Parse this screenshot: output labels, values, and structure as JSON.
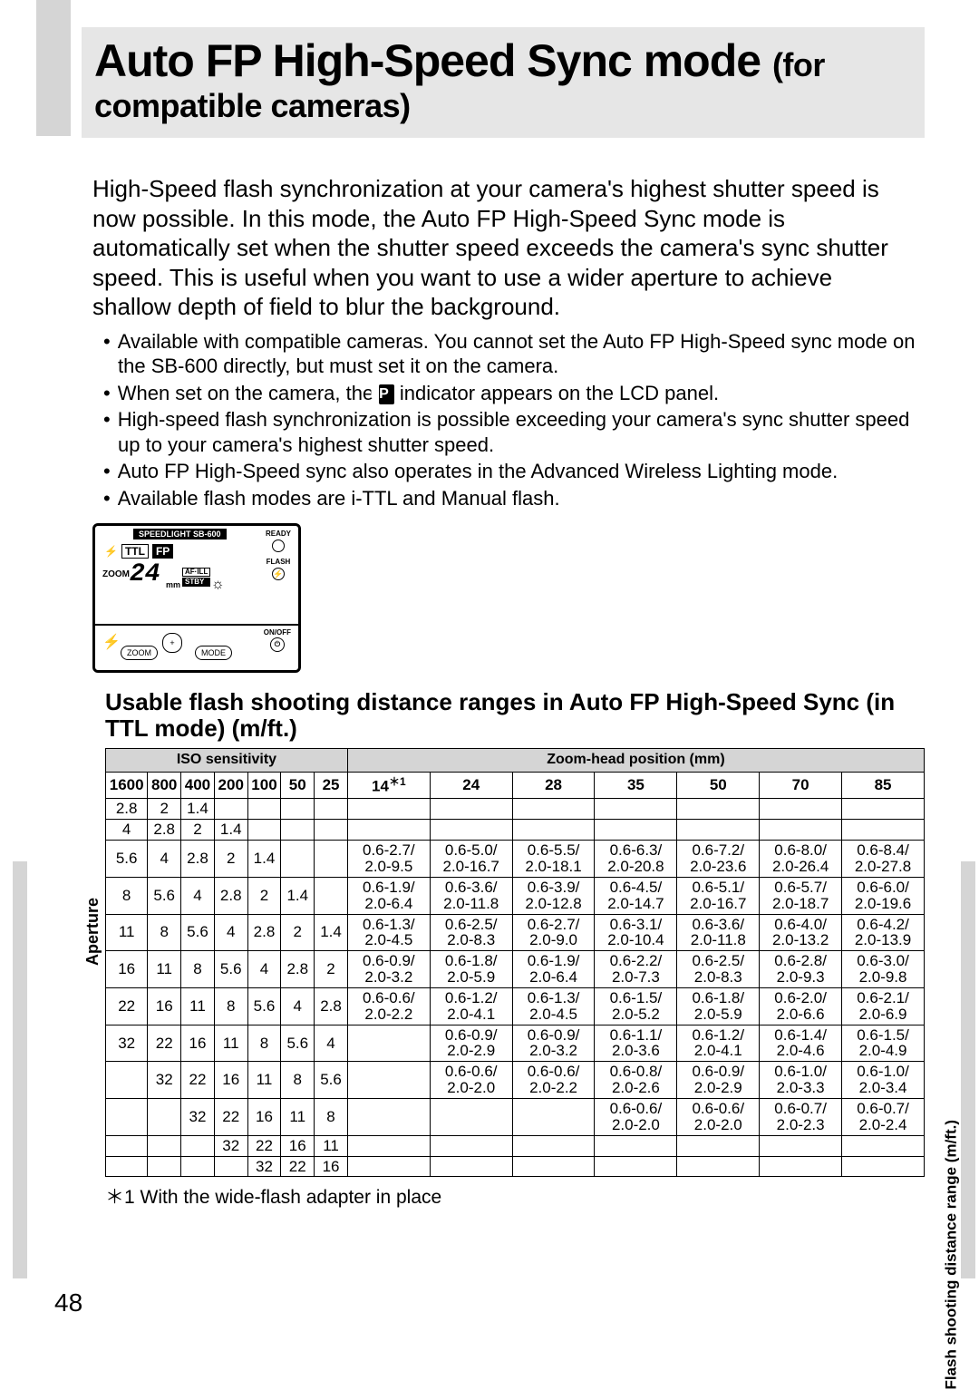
{
  "title": {
    "main": "Auto FP High-Speed Sync mode ",
    "sub": "(for compatible cameras)"
  },
  "intro": "High-Speed flash synchronization at your camera's highest shutter speed is now possible. In this mode, the Auto FP High-Speed Sync mode is automatically set when the shutter speed exceeds the camera's sync shutter speed. This is useful when you want to use a wider aperture to achieve shallow depth of field to blur the background.",
  "bullets": [
    "Available with compatible cameras. You cannot set the Auto FP High-Speed sync mode on the SB-600 directly, but must set it on the camera.",
    "When set on the camera, the [FP] indicator appears on the LCD panel.",
    "High-speed flash synchronization is possible exceeding your camera's sync shutter speed up to your camera's highest shutter speed.",
    "Auto FP High-Speed sync also operates in the Advanced Wireless Lighting mode.",
    "Available flash modes are i-TTL and Manual flash."
  ],
  "lcd": {
    "model": "SPEEDLIGHT SB-600",
    "ttl": "TTL",
    "fp": "FP",
    "zoom": "ZOOM",
    "val": "24",
    "mm": "mm",
    "af": "AF·ILL",
    "stby": "STBY",
    "ready": "READY",
    "flash": "FLASH",
    "onoff": "ON/OFF",
    "btn_zoom": "ZOOM",
    "btn_mode": "MODE"
  },
  "subheading": "Usable flash shooting distance ranges in Auto FP High-Speed Sync (in TTL mode) (m/ft.)",
  "table": {
    "iso_header": "ISO sensitivity",
    "zoom_header": "Zoom-head position (mm)",
    "aperture_label": "Aperture",
    "range_label": "Flash shooting distance range (m/ft.)",
    "iso_cols": [
      "1600",
      "800",
      "400",
      "200",
      "100",
      "50",
      "25"
    ],
    "zoom_cols": [
      "14",
      "24",
      "28",
      "35",
      "50",
      "70",
      "85"
    ],
    "zoom_star": "＊1",
    "rows": [
      {
        "ap": [
          "2.8",
          "2",
          "1.4",
          "",
          "",
          "",
          ""
        ],
        "z": [
          "",
          "",
          "",
          "",
          "",
          "",
          ""
        ]
      },
      {
        "ap": [
          "4",
          "2.8",
          "2",
          "1.4",
          "",
          "",
          ""
        ],
        "z": [
          "",
          "",
          "",
          "",
          "",
          "",
          ""
        ]
      },
      {
        "ap": [
          "5.6",
          "4",
          "2.8",
          "2",
          "1.4",
          "",
          ""
        ],
        "z": [
          "0.6-2.7/\n2.0-9.5",
          "0.6-5.0/\n2.0-16.7",
          "0.6-5.5/\n2.0-18.1",
          "0.6-6.3/\n2.0-20.8",
          "0.6-7.2/\n2.0-23.6",
          "0.6-8.0/\n2.0-26.4",
          "0.6-8.4/\n2.0-27.8"
        ]
      },
      {
        "ap": [
          "8",
          "5.6",
          "4",
          "2.8",
          "2",
          "1.4",
          ""
        ],
        "z": [
          "0.6-1.9/\n2.0-6.4",
          "0.6-3.6/\n2.0-11.8",
          "0.6-3.9/\n2.0-12.8",
          "0.6-4.5/\n2.0-14.7",
          "0.6-5.1/\n2.0-16.7",
          "0.6-5.7/\n2.0-18.7",
          "0.6-6.0/\n2.0-19.6"
        ]
      },
      {
        "ap": [
          "11",
          "8",
          "5.6",
          "4",
          "2.8",
          "2",
          "1.4"
        ],
        "z": [
          "0.6-1.3/\n2.0-4.5",
          "0.6-2.5/\n2.0-8.3",
          "0.6-2.7/\n2.0-9.0",
          "0.6-3.1/\n2.0-10.4",
          "0.6-3.6/\n2.0-11.8",
          "0.6-4.0/\n2.0-13.2",
          "0.6-4.2/\n2.0-13.9"
        ]
      },
      {
        "ap": [
          "16",
          "11",
          "8",
          "5.6",
          "4",
          "2.8",
          "2"
        ],
        "z": [
          "0.6-0.9/\n2.0-3.2",
          "0.6-1.8/\n2.0-5.9",
          "0.6-1.9/\n2.0-6.4",
          "0.6-2.2/\n2.0-7.3",
          "0.6-2.5/\n2.0-8.3",
          "0.6-2.8/\n2.0-9.3",
          "0.6-3.0/\n2.0-9.8"
        ]
      },
      {
        "ap": [
          "22",
          "16",
          "11",
          "8",
          "5.6",
          "4",
          "2.8"
        ],
        "z": [
          "0.6-0.6/\n2.0-2.2",
          "0.6-1.2/\n2.0-4.1",
          "0.6-1.3/\n2.0-4.5",
          "0.6-1.5/\n2.0-5.2",
          "0.6-1.8/\n2.0-5.9",
          "0.6-2.0/\n2.0-6.6",
          "0.6-2.1/\n2.0-6.9"
        ]
      },
      {
        "ap": [
          "32",
          "22",
          "16",
          "11",
          "8",
          "5.6",
          "4"
        ],
        "z": [
          "",
          "0.6-0.9/\n2.0-2.9",
          "0.6-0.9/\n2.0-3.2",
          "0.6-1.1/\n2.0-3.6",
          "0.6-1.2/\n2.0-4.1",
          "0.6-1.4/\n2.0-4.6",
          "0.6-1.5/\n2.0-4.9"
        ]
      },
      {
        "ap": [
          "",
          "32",
          "22",
          "16",
          "11",
          "8",
          "5.6"
        ],
        "z": [
          "",
          "0.6-0.6/\n2.0-2.0",
          "0.6-0.6/\n2.0-2.2",
          "0.6-0.8/\n2.0-2.6",
          "0.6-0.9/\n2.0-2.9",
          "0.6-1.0/\n2.0-3.3",
          "0.6-1.0/\n2.0-3.4"
        ]
      },
      {
        "ap": [
          "",
          "",
          "32",
          "22",
          "16",
          "11",
          "8"
        ],
        "z": [
          "",
          "",
          "",
          "0.6-0.6/\n2.0-2.0",
          "0.6-0.6/\n2.0-2.0",
          "0.6-0.7/\n2.0-2.3",
          "0.6-0.7/\n2.0-2.4"
        ]
      },
      {
        "ap": [
          "",
          "",
          "",
          "32",
          "22",
          "16",
          "11"
        ],
        "z": [
          "",
          "",
          "",
          "",
          "",
          "",
          ""
        ]
      },
      {
        "ap": [
          "",
          "",
          "",
          "",
          "32",
          "22",
          "16"
        ],
        "z": [
          "",
          "",
          "",
          "",
          "",
          "",
          ""
        ]
      }
    ]
  },
  "footnote": "＊1 With the wide-flash adapter in place",
  "page": "48"
}
